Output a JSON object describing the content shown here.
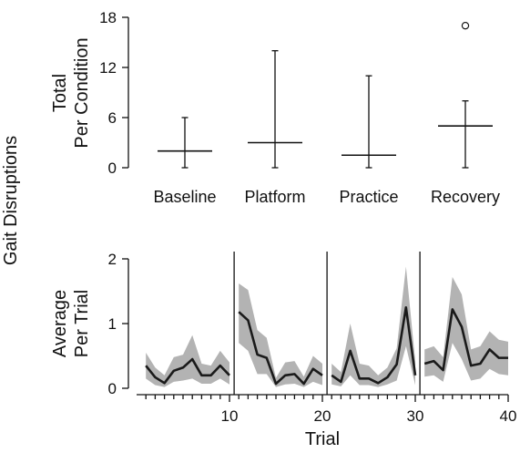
{
  "figure": {
    "shared_ylabel": "Gait Disruptions"
  },
  "chart_data": [
    {
      "type": "box",
      "ylabel_line1": "Total",
      "ylabel_line2": "Per Condition",
      "ylim": [
        0,
        18
      ],
      "yticks": [
        0,
        6,
        12,
        18
      ],
      "categories": [
        "Baseline",
        "Platform",
        "Practice",
        "Recovery"
      ],
      "boxes": [
        {
          "min": 0,
          "median": 2,
          "max": 6,
          "outliers": []
        },
        {
          "min": 0,
          "median": 3,
          "max": 14,
          "outliers": []
        },
        {
          "min": 0,
          "median": 1.5,
          "max": 11,
          "outliers": []
        },
        {
          "min": 0,
          "median": 5,
          "max": 8,
          "outliers": [
            17
          ]
        }
      ]
    },
    {
      "type": "line",
      "ylabel_line1": "Average",
      "ylabel_line2": "Per Trial",
      "xlabel": "Trial",
      "xlim": [
        0,
        40
      ],
      "ylim": [
        0,
        2
      ],
      "yticks": [
        0,
        1,
        2
      ],
      "xticks": [
        10,
        20,
        30,
        40
      ],
      "dividers": [
        10.5,
        20.5,
        30.5
      ],
      "line_color": "#1a1a1a",
      "band_color": "#b3b3b3",
      "segments": [
        {
          "x": [
            1,
            2,
            3,
            4,
            5,
            6,
            7,
            8,
            9,
            10
          ],
          "y": [
            0.35,
            0.17,
            0.08,
            0.27,
            0.32,
            0.45,
            0.2,
            0.2,
            0.35,
            0.2
          ],
          "lower": [
            0.15,
            0.05,
            0.02,
            0.1,
            0.12,
            0.15,
            0.07,
            0.07,
            0.15,
            0.06
          ],
          "upper": [
            0.55,
            0.32,
            0.2,
            0.48,
            0.52,
            0.82,
            0.38,
            0.35,
            0.58,
            0.4
          ]
        },
        {
          "x": [
            11,
            12,
            13,
            14,
            15,
            16,
            17,
            18,
            19,
            20
          ],
          "y": [
            1.18,
            1.05,
            0.52,
            0.47,
            0.07,
            0.2,
            0.22,
            0.07,
            0.3,
            0.2
          ],
          "lower": [
            0.7,
            0.58,
            0.22,
            0.22,
            0.02,
            0.06,
            0.07,
            0.02,
            0.1,
            0.05
          ],
          "upper": [
            1.62,
            1.52,
            0.9,
            0.78,
            0.16,
            0.4,
            0.42,
            0.18,
            0.5,
            0.38
          ]
        },
        {
          "x": [
            21,
            22,
            23,
            24,
            25,
            26,
            27,
            28,
            29,
            30
          ],
          "y": [
            0.2,
            0.1,
            0.58,
            0.15,
            0.15,
            0.08,
            0.17,
            0.37,
            1.25,
            0.2
          ],
          "lower": [
            0.06,
            0.03,
            0.2,
            0.05,
            0.05,
            0.02,
            0.06,
            0.12,
            0.65,
            0.05
          ],
          "upper": [
            0.38,
            0.25,
            1.0,
            0.38,
            0.35,
            0.2,
            0.32,
            0.62,
            1.88,
            0.42
          ]
        },
        {
          "x": [
            31,
            32,
            33,
            34,
            35,
            36,
            37,
            38,
            39,
            40
          ],
          "y": [
            0.38,
            0.42,
            0.28,
            1.22,
            0.95,
            0.35,
            0.38,
            0.6,
            0.47,
            0.47
          ],
          "lower": [
            0.18,
            0.2,
            0.1,
            0.7,
            0.45,
            0.12,
            0.15,
            0.3,
            0.22,
            0.2
          ],
          "upper": [
            0.6,
            0.65,
            0.48,
            1.72,
            1.45,
            0.6,
            0.65,
            0.88,
            0.75,
            0.72
          ]
        }
      ]
    }
  ]
}
